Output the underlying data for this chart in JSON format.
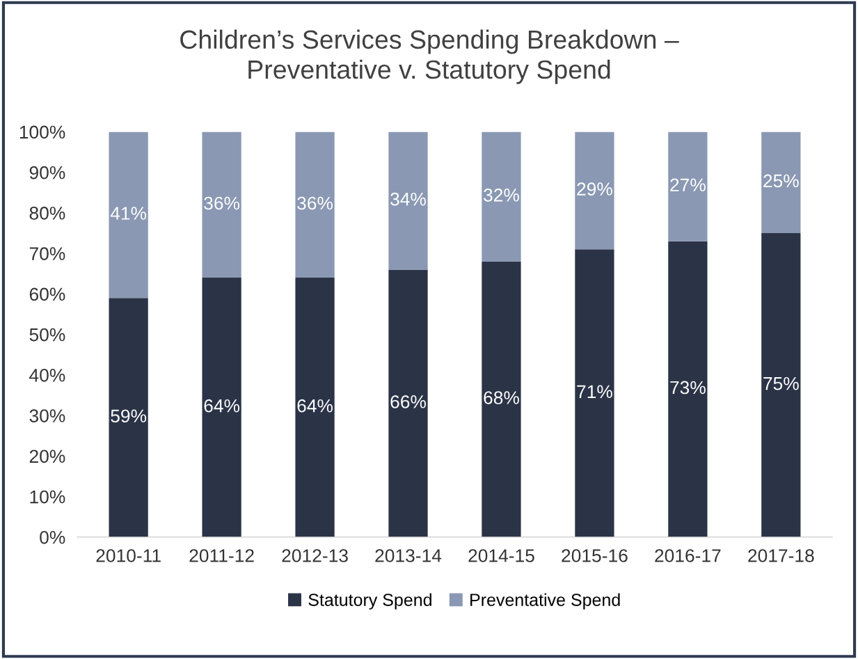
{
  "chart_data": {
    "type": "bar",
    "title": "Children’s Services Spending Breakdown –\nPreventative v. Statutory Spend",
    "categories": [
      "2010-11",
      "2011-12",
      "2012-13",
      "2013-14",
      "2014-15",
      "2015-16",
      "2016-17",
      "2017-18"
    ],
    "stacked": true,
    "series": [
      {
        "name": "Statutory Spend",
        "color": "#2b3447",
        "values": [
          59,
          64,
          64,
          66,
          68,
          71,
          73,
          75
        ],
        "value_labels": [
          "59%",
          "64%",
          "64%",
          "66%",
          "68%",
          "71%",
          "73%",
          "75%"
        ]
      },
      {
        "name": "Preventative Spend",
        "color": "#8a98b3",
        "values": [
          41,
          36,
          36,
          34,
          32,
          29,
          27,
          25
        ],
        "value_labels": [
          "41%",
          "36%",
          "36%",
          "34%",
          "32%",
          "29%",
          "27%",
          "25%"
        ]
      }
    ],
    "ylim": [
      0,
      100
    ],
    "yticks": [
      {
        "value": 0,
        "label": "0%"
      },
      {
        "value": 10,
        "label": "10%"
      },
      {
        "value": 20,
        "label": "20%"
      },
      {
        "value": 30,
        "label": "30%"
      },
      {
        "value": 40,
        "label": "40%"
      },
      {
        "value": 50,
        "label": "50%"
      },
      {
        "value": 60,
        "label": "60%"
      },
      {
        "value": 70,
        "label": "70%"
      },
      {
        "value": 80,
        "label": "80%"
      },
      {
        "value": 90,
        "label": "90%"
      },
      {
        "value": 100,
        "label": "100%"
      }
    ],
    "grid": false,
    "legend": "bottom"
  }
}
